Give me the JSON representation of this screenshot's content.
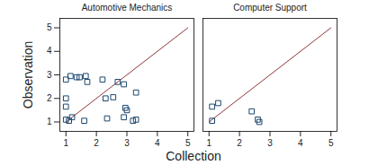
{
  "chart_data": {
    "type": "scatter",
    "x_label": "Collection",
    "y_label": "Observation",
    "xlim": [
      0.8,
      5.2
    ],
    "ylim": [
      0.6,
      5.4
    ],
    "xticks": [
      1,
      2,
      3,
      4,
      5
    ],
    "yticks": [
      1,
      2,
      3,
      4,
      5
    ],
    "grid": false,
    "marker": "square",
    "color": "#1a476f",
    "reference_line": {
      "x": [
        1,
        5
      ],
      "y": [
        1,
        5
      ],
      "color": "#90353b"
    },
    "panels": [
      {
        "title": "Automotive Mechanics",
        "x": [
          1,
          1,
          1,
          1,
          1.1,
          1.2,
          1.15,
          1.35,
          1.45,
          1.65,
          1.7,
          1.6,
          2.2,
          2.3,
          2.35,
          2.55,
          2.7,
          2.9,
          2.9,
          2.95,
          3.0,
          3.3,
          3.2,
          3.3
        ],
        "y": [
          2.8,
          2.0,
          1.65,
          1.1,
          1.05,
          1.2,
          2.95,
          2.9,
          2.9,
          2.95,
          2.7,
          1.05,
          2.8,
          2.0,
          1.15,
          2.05,
          2.7,
          2.6,
          1.2,
          1.6,
          1.5,
          2.25,
          1.05,
          1.1
        ]
      },
      {
        "title": "Computer Support",
        "x": [
          1.1,
          1.3,
          1.1,
          2.4,
          2.6,
          2.65
        ],
        "y": [
          1.65,
          1.8,
          1.05,
          1.45,
          1.1,
          1.0
        ]
      }
    ]
  }
}
